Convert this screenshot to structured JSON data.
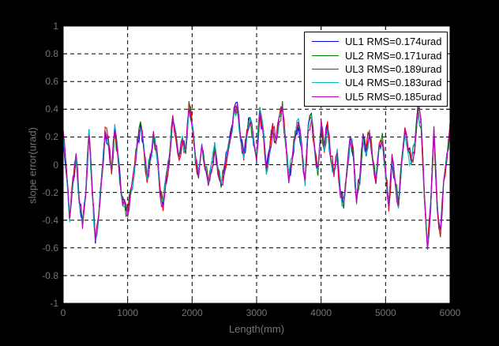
{
  "figure": {
    "background_color": "#000000",
    "plot_background_color": "#ffffff",
    "grid_color": "#000000",
    "axis_text_color": "#747474"
  },
  "chart_data": {
    "type": "line",
    "title": "",
    "xlabel": "Length(mm)",
    "ylabel": "slope error(urad)",
    "xlim": [
      0,
      6000
    ],
    "ylim": [
      -1,
      1
    ],
    "xticks": [
      0,
      1000,
      2000,
      3000,
      4000,
      5000,
      6000
    ],
    "xtick_labels": [
      "0",
      "1000",
      "2000",
      "3000",
      "4000",
      "5000",
      "6000"
    ],
    "yticks": [
      1,
      0.8,
      0.6,
      0.4,
      0.2,
      0,
      -0.2,
      -0.4,
      -0.6,
      -0.8,
      -1
    ],
    "ytick_labels": [
      "1",
      "0.8",
      "0.6",
      "0.4",
      "0.2",
      "0",
      "-0.2",
      "-0.4",
      "-0.6",
      "-0.8",
      "-1"
    ],
    "grid": "dashed",
    "legend_position": "top-right",
    "series": [
      {
        "name": "UL1",
        "label": "UL1 RMS=0.174urad",
        "rms_urad": 0.174,
        "color": "#0000EE"
      },
      {
        "name": "UL2",
        "label": "UL2 RMS=0.171urad",
        "rms_urad": 0.171,
        "color": "#007B00"
      },
      {
        "name": "UL3",
        "label": "UL3 RMS=0.189urad",
        "rms_urad": 0.189,
        "color": "#EE0000"
      },
      {
        "name": "UL4",
        "label": "UL4 RMS=0.183urad",
        "rms_urad": 0.183,
        "color": "#00BBBB"
      },
      {
        "name": "UL5",
        "label": "UL5 RMS=0.185urad",
        "rms_urad": 0.185,
        "color": "#BB00BB"
      }
    ],
    "sample_x0_mm": 0,
    "sample_dx_mm": 50,
    "sampled_y_urad": [
      0.22,
      -0.05,
      -0.38,
      -0.12,
      0.06,
      -0.25,
      -0.43,
      -0.2,
      0.23,
      -0.18,
      -0.55,
      -0.36,
      -0.08,
      0.24,
      0.17,
      -0.05,
      0.26,
      0.07,
      -0.22,
      -0.27,
      -0.35,
      -0.2,
      -0.05,
      0.15,
      0.28,
      0.12,
      -0.1,
      0.05,
      0.21,
      0.1,
      -0.18,
      -0.3,
      -0.1,
      0.06,
      0.33,
      0.21,
      0.05,
      0.18,
      0.1,
      0.42,
      0.3,
      0.05,
      -0.08,
      0.12,
      -0.02,
      -0.13,
      -0.02,
      0.13,
      -0.05,
      -0.15,
      -0.03,
      0.1,
      0.22,
      0.38,
      0.42,
      0.2,
      0.07,
      0.22,
      0.33,
      0.18,
      0.05,
      0.38,
      0.25,
      -0.05,
      0.1,
      0.28,
      0.16,
      0.32,
      0.42,
      0.15,
      -0.1,
      0.05,
      0.22,
      0.3,
      0.12,
      -0.12,
      0.25,
      0.35,
      0.1,
      -0.05,
      0.3,
      0.12,
      0.28,
      0.05,
      -0.05,
      0.08,
      -0.2,
      -0.28,
      -0.05,
      0.18,
      0.08,
      -0.25,
      -0.1,
      0.2,
      0.1,
      0.24,
      0.05,
      -0.1,
      0.12,
      0.2,
      -0.05,
      -0.3,
      0.05,
      -0.12,
      -0.28,
      0.02,
      0.25,
      0.1,
      0.02,
      0.12,
      0.4,
      0.3,
      -0.2,
      -0.58,
      -0.3,
      0.25,
      -0.3,
      -0.5,
      -0.15,
      0.05,
      0.28
    ]
  }
}
